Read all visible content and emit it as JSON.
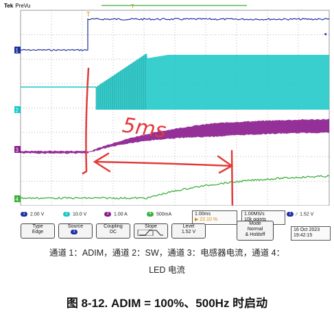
{
  "scope": {
    "brand": "Tek",
    "mode": "PreVu",
    "trigger_marker": "T",
    "ch_markers": [
      "1",
      "2",
      "3",
      "4"
    ],
    "annotation_text": "5ms",
    "colors": {
      "ch1": "#1d2fa0",
      "ch2": "#18c7c7",
      "ch3": "#8b1a8e",
      "ch4": "#3bb03b",
      "grid": "#9a9a9a",
      "annotation": "#e23a3a"
    },
    "channels": [
      {
        "num": "1",
        "scale": "2.00 V",
        "color": "#1d2fa0"
      },
      {
        "num": "2",
        "scale": "10.0 V",
        "color": "#18c7c7"
      },
      {
        "num": "3",
        "scale": "1.00 A",
        "color": "#8b1a8e"
      },
      {
        "num": "4",
        "scale": "500mA",
        "color": "#3bb03b"
      }
    ],
    "timebase": "1.00ms",
    "timebase_pct": "22.10 %",
    "sample_rate": "1.00MS/s",
    "record": "10k points",
    "trig_ch": "1",
    "trig_slope": "∕",
    "trig_level": "1.52 V",
    "date": "16 Oct  2023",
    "time": "19:42:15",
    "menu": [
      {
        "top": "Type",
        "bottom": "Edge"
      },
      {
        "top": "Source",
        "bottom": "1"
      },
      {
        "top": "Coupling",
        "bottom": "DC"
      },
      {
        "top": "Slope",
        "bottom": ""
      },
      {
        "top": "Level",
        "bottom": "1.52 V"
      },
      {
        "top": "Mode",
        "mid": "Normal",
        "bottom": "& Holdoff"
      }
    ]
  },
  "caption_line1": "通道 1：ADIM，通道 2：SW，通道 3：电感器电流，通道 4：",
  "caption_line2": "LED 电流",
  "figure_title": "图 8-12. ADIM = 100%、500Hz 时启动"
}
